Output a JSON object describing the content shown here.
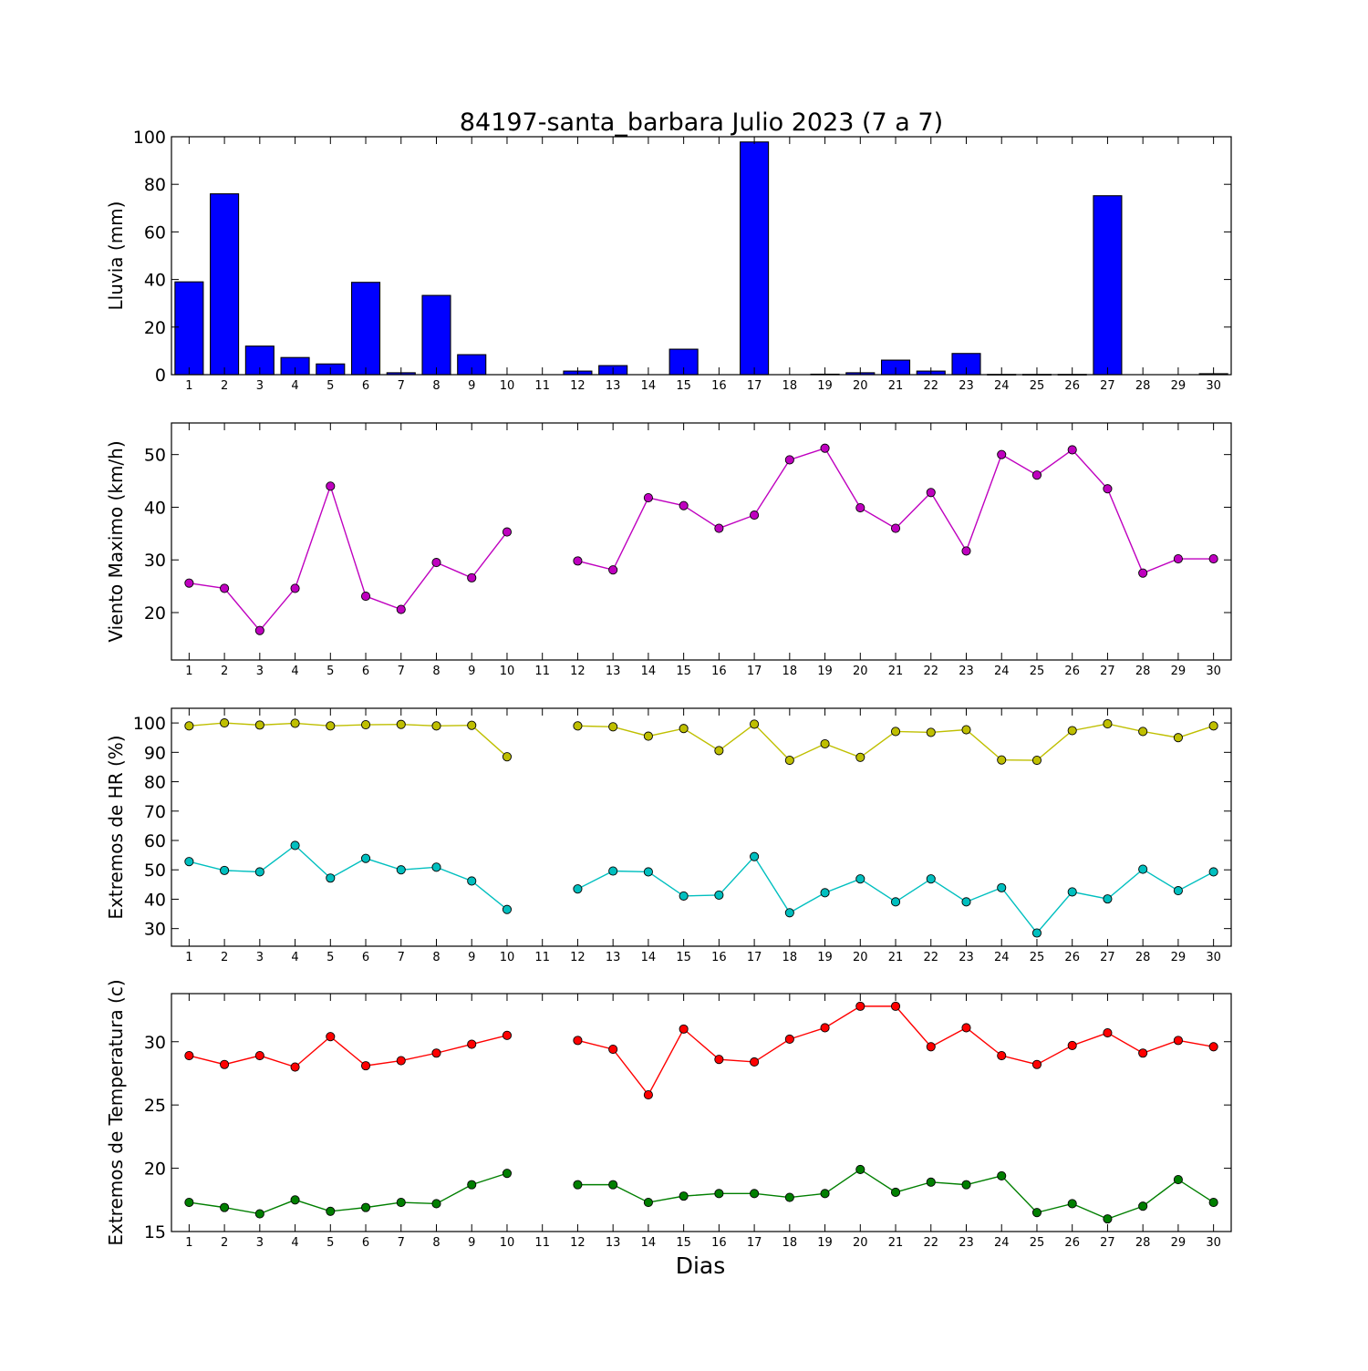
{
  "figure": {
    "title": "84197-santa_barbara Julio 2023  (7 a 7)",
    "xlabel": "Dias"
  },
  "chart_data": [
    {
      "type": "bar",
      "ylabel": "Lluvia (mm)",
      "ylim": [
        0,
        100
      ],
      "yticks": [
        0,
        20,
        40,
        60,
        80,
        100
      ],
      "categories": [
        1,
        2,
        3,
        4,
        5,
        6,
        7,
        8,
        9,
        10,
        11,
        12,
        13,
        14,
        15,
        16,
        17,
        18,
        19,
        20,
        21,
        22,
        23,
        24,
        25,
        26,
        27,
        28,
        29,
        30
      ],
      "series": [
        {
          "color": "#0000ff",
          "values": [
            39,
            76,
            12,
            7.2,
            4.5,
            38.8,
            0.8,
            33.3,
            8.4,
            0,
            0,
            1.5,
            3.8,
            0,
            10.7,
            0,
            97.8,
            0,
            0.2,
            0.8,
            6.1,
            1.5,
            8.9,
            0.1,
            0.1,
            0.1,
            75.2,
            0,
            0,
            0.4
          ]
        }
      ],
      "grid": false
    },
    {
      "type": "line",
      "ylabel": "Viento Maximo (km/h)",
      "ylim": [
        11,
        56
      ],
      "yticks": [
        20,
        30,
        40,
        50
      ],
      "x": [
        1,
        2,
        3,
        4,
        5,
        6,
        7,
        8,
        9,
        10,
        11,
        12,
        13,
        14,
        15,
        16,
        17,
        18,
        19,
        20,
        21,
        22,
        23,
        24,
        25,
        26,
        27,
        28,
        29,
        30
      ],
      "series": [
        {
          "color": "#bf00bf",
          "values": [
            25.6,
            24.6,
            16.6,
            24.6,
            44,
            23.1,
            20.6,
            29.5,
            26.6,
            35.3,
            null,
            29.8,
            28.1,
            41.8,
            40.3,
            36,
            38.5,
            49,
            51.2,
            39.9,
            36,
            42.8,
            31.7,
            50,
            46.1,
            50.9,
            43.5,
            27.5,
            30.2,
            30.2
          ]
        }
      ],
      "grid": false
    },
    {
      "type": "line",
      "ylabel": "Extremos de HR (%)",
      "ylim": [
        24,
        105
      ],
      "yticks": [
        30,
        40,
        50,
        60,
        70,
        80,
        90,
        100
      ],
      "x": [
        1,
        2,
        3,
        4,
        5,
        6,
        7,
        8,
        9,
        10,
        11,
        12,
        13,
        14,
        15,
        16,
        17,
        18,
        19,
        20,
        21,
        22,
        23,
        24,
        25,
        26,
        27,
        28,
        29,
        30
      ],
      "series": [
        {
          "color": "#bfbf00",
          "values": [
            99,
            100,
            99.3,
            99.9,
            99,
            99.4,
            99.5,
            99,
            99.2,
            88.5,
            null,
            99,
            98.7,
            95.5,
            98.1,
            90.6,
            99.6,
            87.3,
            92.9,
            88.3,
            97.1,
            96.8,
            97.7,
            87.4,
            87.3,
            97.4,
            99.7,
            97.1,
            95,
            99
          ]
        },
        {
          "color": "#00bfbf",
          "values": [
            52.8,
            49.8,
            49.3,
            58.3,
            47.2,
            53.9,
            50,
            50.9,
            46.2,
            36.5,
            null,
            43.5,
            49.6,
            49.3,
            41.1,
            41.4,
            54.5,
            35.4,
            42.2,
            46.9,
            39.1,
            46.9,
            39.1,
            43.9,
            28.5,
            42.5,
            40.1,
            50.2,
            42.9,
            49.3
          ]
        }
      ],
      "grid": false
    },
    {
      "type": "line",
      "ylabel": "Extremos de Temperatura (c)",
      "ylim": [
        15,
        33.8
      ],
      "yticks": [
        15,
        20,
        25,
        30
      ],
      "x": [
        1,
        2,
        3,
        4,
        5,
        6,
        7,
        8,
        9,
        10,
        11,
        12,
        13,
        14,
        15,
        16,
        17,
        18,
        19,
        20,
        21,
        22,
        23,
        24,
        25,
        26,
        27,
        28,
        29,
        30
      ],
      "series": [
        {
          "color": "#ff0000",
          "values": [
            28.9,
            28.2,
            28.9,
            28,
            30.4,
            28.1,
            28.5,
            29.1,
            29.8,
            30.5,
            null,
            30.1,
            29.4,
            25.8,
            31,
            28.6,
            28.4,
            30.2,
            31.1,
            32.8,
            32.8,
            29.6,
            31.1,
            28.9,
            28.2,
            29.7,
            30.7,
            29.1,
            30.1,
            29.6
          ]
        },
        {
          "color": "#007f00",
          "values": [
            17.3,
            16.9,
            16.4,
            17.5,
            16.6,
            16.9,
            17.3,
            17.2,
            18.7,
            19.6,
            null,
            18.7,
            18.7,
            17.3,
            17.8,
            18,
            18,
            17.7,
            18,
            19.9,
            18.1,
            18.9,
            18.7,
            19.4,
            16.5,
            17.2,
            16,
            17,
            19.1,
            17.3
          ]
        }
      ],
      "grid": false
    }
  ]
}
